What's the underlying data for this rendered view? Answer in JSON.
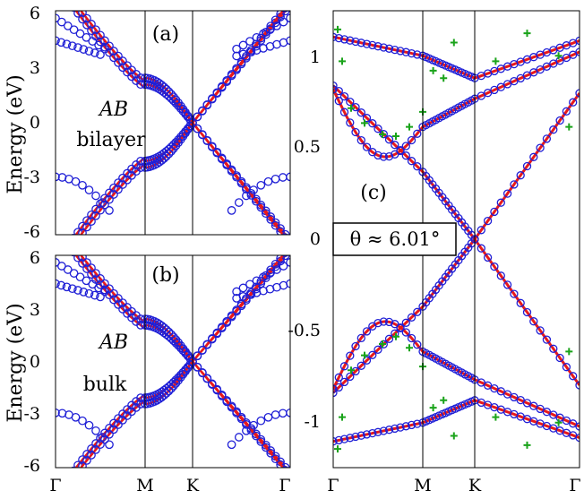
{
  "panels": {
    "a": {
      "label": "(a)",
      "ylabel": "Energy (eV)",
      "annotation_italic": "AB",
      "annotation": "bilayer",
      "yticks": [
        "6",
        "3",
        "0",
        "-3",
        "-6"
      ]
    },
    "b": {
      "label": "(b)",
      "ylabel": "Energy (eV)",
      "annotation_italic": "AB",
      "annotation": "bulk",
      "yticks": [
        "6",
        "3",
        "0",
        "-3",
        "-6"
      ],
      "xticks": [
        "Γ",
        "M",
        "K",
        "Γ"
      ]
    },
    "c": {
      "label": "(c)",
      "theta_label": "θ ≈ 6.01°",
      "yticks": [
        "1",
        "0.5",
        "0",
        "-0.5",
        "-1"
      ],
      "xticks": [
        "Γ",
        "M",
        "K",
        "Γ"
      ]
    }
  },
  "colors": {
    "line": "#e8191b",
    "circle": "#1f1fd6",
    "plus": "#1aa31a"
  },
  "chart_data": [
    {
      "type": "line",
      "panel": "a",
      "title": "",
      "xlabel": "",
      "ylabel": "Energy (eV)",
      "ylim": [
        -6,
        6
      ],
      "x_ticks": [
        "Γ",
        "M",
        "K",
        "Γ"
      ],
      "series": [
        {
          "values": [
            [
              -1.0,
              -5.8
            ],
            [
              -0.6,
              -4.0
            ],
            [
              -0.25,
              -1.5
            ],
            [
              0.0,
              0.0
            ],
            [
              0.25,
              1.5
            ],
            [
              0.6,
              4.0
            ],
            [
              1.0,
              5.8
            ]
          ]
        },
        {
          "values": [
            [
              -1.0,
              -5.8
            ],
            [
              -0.6,
              -3.6
            ],
            [
              -0.25,
              -1.0
            ],
            [
              0.0,
              0.0
            ],
            [
              0.25,
              1.0
            ],
            [
              0.6,
              3.6
            ],
            [
              1.0,
              5.8
            ]
          ]
        }
      ]
    },
    {
      "type": "line",
      "panel": "b",
      "title": "",
      "xlabel": "",
      "ylabel": "Energy (eV)",
      "ylim": [
        -6,
        6
      ],
      "x_ticks": [
        "Γ",
        "M",
        "K",
        "Γ"
      ],
      "series": [
        {
          "values": [
            [
              -1.0,
              -5.8
            ],
            [
              -0.6,
              -4.0
            ],
            [
              -0.25,
              -1.5
            ],
            [
              0.0,
              0.0
            ],
            [
              0.25,
              1.5
            ],
            [
              0.6,
              4.0
            ],
            [
              1.0,
              5.8
            ]
          ]
        },
        {
          "values": [
            [
              -1.0,
              -5.8
            ],
            [
              -0.6,
              -3.6
            ],
            [
              -0.25,
              -1.0
            ],
            [
              0.0,
              0.0
            ],
            [
              0.25,
              1.0
            ],
            [
              0.6,
              3.6
            ],
            [
              1.0,
              5.8
            ]
          ]
        }
      ]
    },
    {
      "type": "line",
      "panel": "c",
      "title": "",
      "xlabel": "",
      "ylabel": "",
      "ylim": [
        -1.22,
        1.22
      ],
      "x_ticks": [
        "Γ",
        "M",
        "K",
        "Γ"
      ],
      "series": [
        {
          "values": [
            [
              0.0,
              0.78
            ],
            [
              0.45,
              0.42
            ],
            [
              0.5,
              0.36
            ],
            [
              1.0,
              0.0
            ],
            [
              1.5,
              -0.36
            ],
            [
              1.55,
              -0.42
            ],
            [
              2.0,
              -0.78
            ]
          ]
        },
        {
          "values": [
            [
              0.0,
              -0.78
            ],
            [
              0.45,
              -0.42
            ],
            [
              0.5,
              -0.36
            ],
            [
              1.0,
              0.0
            ],
            [
              1.5,
              0.36
            ],
            [
              1.55,
              0.42
            ],
            [
              2.0,
              0.78
            ]
          ]
        },
        {
          "values": [
            [
              0.0,
              0.82
            ],
            [
              0.3,
              0.62
            ],
            [
              0.6,
              0.52
            ],
            [
              1.0,
              0.66
            ],
            [
              1.3,
              0.78
            ],
            [
              1.6,
              0.92
            ],
            [
              2.0,
              1.0
            ]
          ]
        },
        {
          "values": [
            [
              0.0,
              -0.82
            ],
            [
              0.3,
              -0.62
            ],
            [
              0.6,
              -0.52
            ],
            [
              1.0,
              -0.66
            ],
            [
              1.3,
              -0.78
            ],
            [
              1.6,
              -0.92
            ],
            [
              2.0,
              -1.0
            ]
          ]
        }
      ]
    }
  ]
}
